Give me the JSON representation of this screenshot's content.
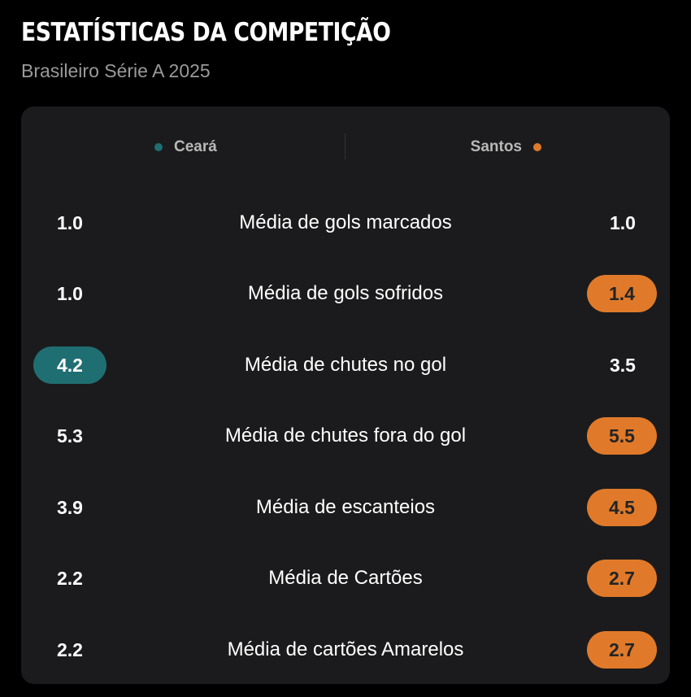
{
  "header": {
    "title": "ESTATÍSTICAS DA COMPETIÇÃO",
    "subtitle": "Brasileiro Série A 2025"
  },
  "teams": {
    "home": {
      "name": "Ceará",
      "color": "#1f6e72"
    },
    "away": {
      "name": "Santos",
      "color": "#e07a2a"
    }
  },
  "stats": [
    {
      "label": "Média de gols marcados",
      "home": "1.0",
      "away": "1.0",
      "leader": "none"
    },
    {
      "label": "Média de gols sofridos",
      "home": "1.0",
      "away": "1.4",
      "leader": "away"
    },
    {
      "label": "Média de chutes no gol",
      "home": "4.2",
      "away": "3.5",
      "leader": "home"
    },
    {
      "label": "Média de chutes fora do gol",
      "home": "5.3",
      "away": "5.5",
      "leader": "away"
    },
    {
      "label": "Média de escanteios",
      "home": "3.9",
      "away": "4.5",
      "leader": "away"
    },
    {
      "label": "Média de Cartões",
      "home": "2.2",
      "away": "2.7",
      "leader": "away"
    },
    {
      "label": "Média de cartões Amarelos",
      "home": "2.2",
      "away": "2.7",
      "leader": "away"
    }
  ]
}
